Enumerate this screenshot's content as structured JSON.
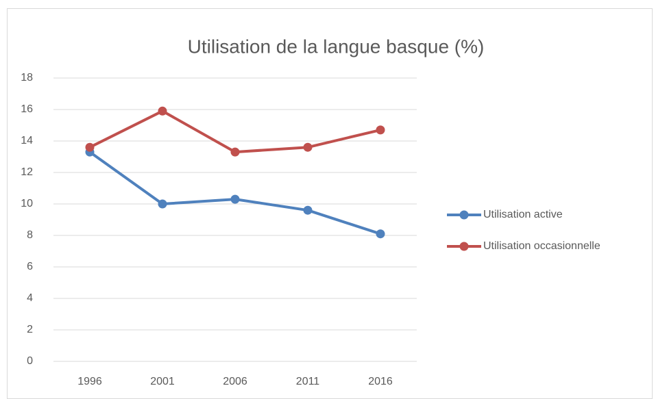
{
  "chart_data": {
    "type": "line",
    "title": "Utilisation de la langue basque (%)",
    "categories": [
      "1996",
      "2001",
      "2006",
      "2011",
      "2016"
    ],
    "series": [
      {
        "name": "Utilisation active",
        "color": "#4f81bd",
        "values": [
          13.3,
          10.0,
          10.3,
          9.6,
          8.1
        ]
      },
      {
        "name": "Utilisation occasionnelle",
        "color": "#c0504d",
        "values": [
          13.6,
          15.9,
          13.3,
          13.6,
          14.7
        ]
      }
    ],
    "ylim": [
      0,
      18
    ],
    "yticks": [
      0,
      2,
      4,
      6,
      8,
      10,
      12,
      14,
      16,
      18
    ],
    "grid": true,
    "legend": "right"
  }
}
